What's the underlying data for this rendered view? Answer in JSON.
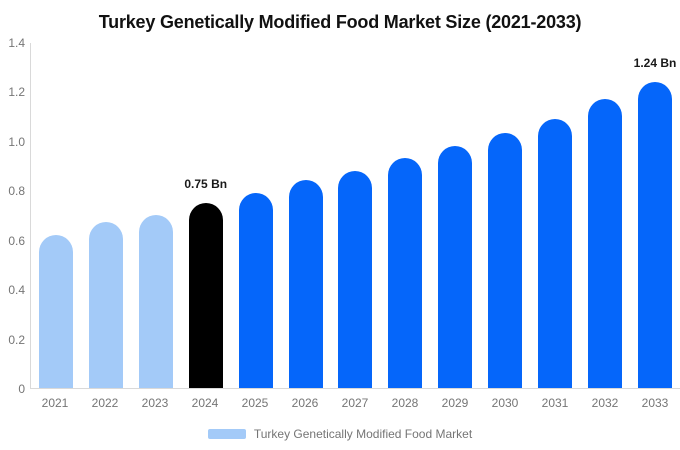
{
  "chart_data": {
    "type": "bar",
    "title": "Turkey Genetically Modified Food Market Size (2021-2033)",
    "categories": [
      "2021",
      "2022",
      "2023",
      "2024",
      "2025",
      "2026",
      "2027",
      "2028",
      "2029",
      "2030",
      "2031",
      "2032",
      "2033"
    ],
    "values": [
      0.62,
      0.67,
      0.7,
      0.75,
      0.79,
      0.84,
      0.88,
      0.93,
      0.98,
      1.03,
      1.09,
      1.17,
      1.24
    ],
    "unit": "Bn",
    "bar_colors": [
      "#A3CAF8",
      "#A3CAF8",
      "#A3CAF8",
      "#000000",
      "#0566FA",
      "#0566FA",
      "#0566FA",
      "#0566FA",
      "#0566FA",
      "#0566FA",
      "#0566FA",
      "#0566FA",
      "#0566FA"
    ],
    "annotations": [
      {
        "category": "2024",
        "text": "0.75 Bn"
      },
      {
        "category": "2033",
        "text": "1.24 Bn"
      }
    ],
    "y_ticks": [
      "0",
      "0.2",
      "0.4",
      "0.6",
      "0.8",
      "1.0",
      "1.2",
      "1.4"
    ],
    "ylim": [
      0,
      1.4
    ],
    "grid": false,
    "legend": {
      "label": "Turkey Genetically Modified Food Market",
      "swatch_color": "#A3CAF8",
      "position": "bottom"
    },
    "colors": {
      "axis_line": "#D9D9D9",
      "tick_text": "#757575",
      "title_text": "#111111",
      "annotation_text": "#1A1A1A",
      "background": "#FFFFFF"
    }
  }
}
